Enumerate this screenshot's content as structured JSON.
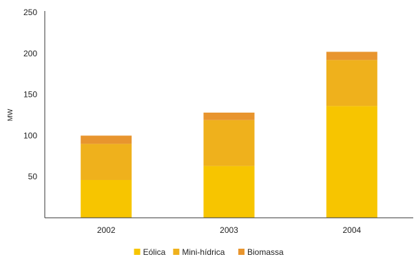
{
  "chart_data": {
    "type": "bar",
    "stacked": true,
    "categories": [
      "2002",
      "2003",
      "2004"
    ],
    "series": [
      {
        "name": "Eólica",
        "color": "#F7C500",
        "values": [
          46,
          63,
          136
        ]
      },
      {
        "name": "Mini-hídrica",
        "color": "#EFB11C",
        "values": [
          44,
          56,
          56
        ]
      },
      {
        "name": "Biomassa",
        "color": "#E8952E",
        "values": [
          10,
          9,
          10
        ]
      }
    ],
    "title": "",
    "xlabel": "",
    "ylabel": "MW",
    "ylim": [
      0,
      250
    ],
    "yticks": [
      "50",
      "100",
      "150",
      "200",
      "250"
    ],
    "grid": false,
    "legend_position": "bottom"
  }
}
